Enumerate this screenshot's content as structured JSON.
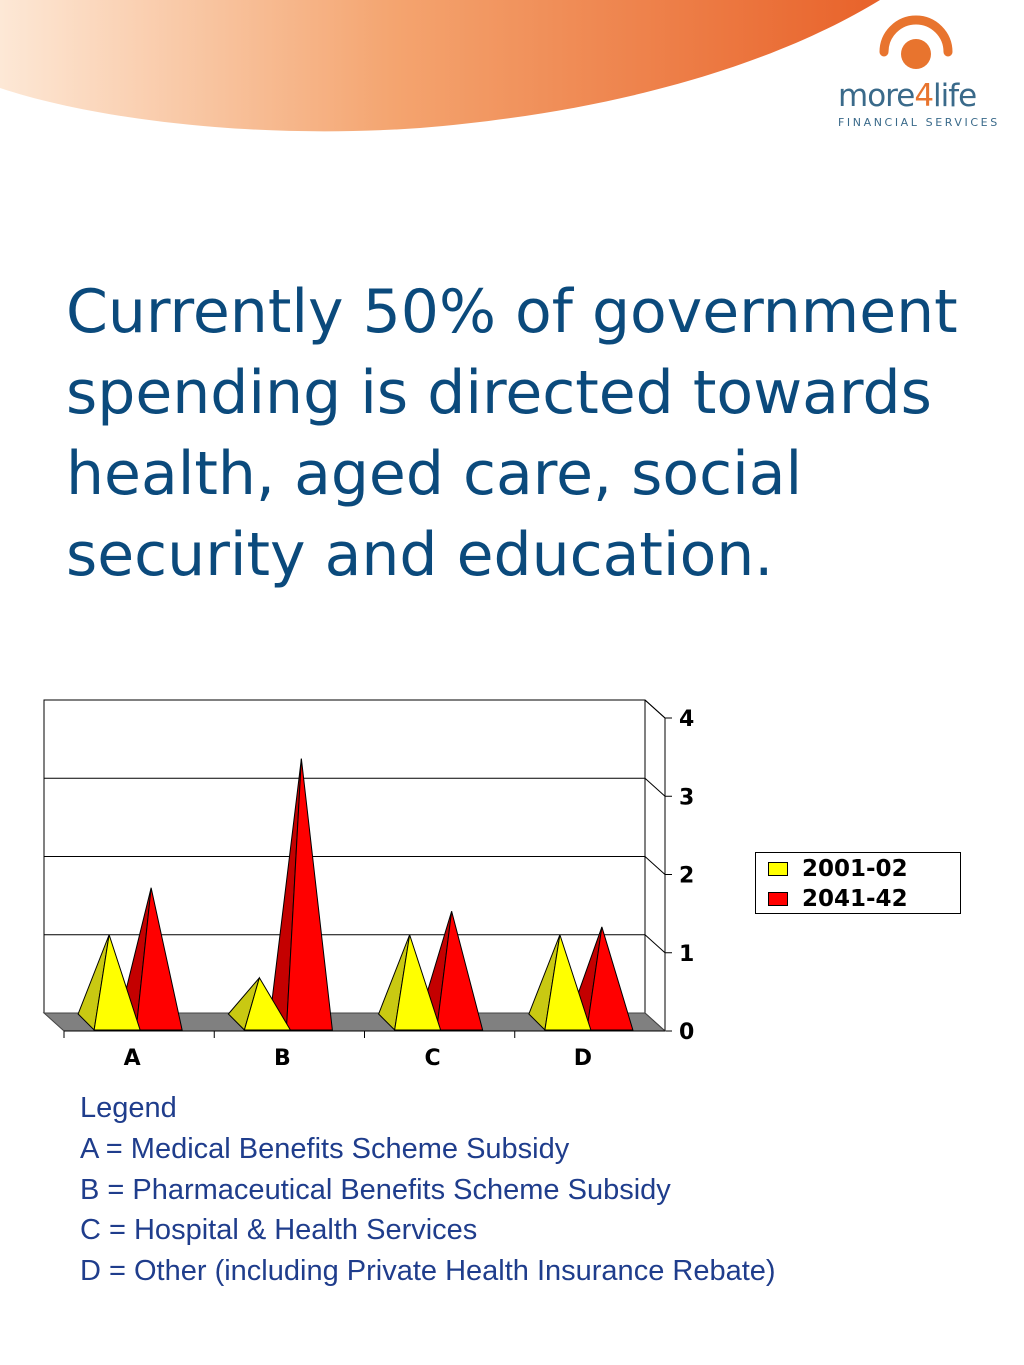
{
  "header": {
    "colors": {
      "gradient_start": "#fde3cc",
      "gradient_end": "#e8652a"
    }
  },
  "logo": {
    "brand_prefix": "more",
    "brand_digit": "4",
    "brand_suffix": "life",
    "tagline": "FINANCIAL SERVICES",
    "icon": "orange-ring-icon",
    "colors": {
      "ring": "#e8742e",
      "text": "#3a6a8a"
    }
  },
  "headline": "Currently 50% of government spending is directed towards health, aged care, social security and education.",
  "chart_data": {
    "type": "bar",
    "style": "3d-pyramid",
    "categories": [
      "A",
      "B",
      "C",
      "D"
    ],
    "series": [
      {
        "name": "2001-02",
        "values": [
          1.0,
          0.45,
          1.0,
          1.0
        ],
        "color": "#ffff00"
      },
      {
        "name": "2041-42",
        "values": [
          1.6,
          3.25,
          1.3,
          1.1
        ],
        "color": "#ff0000"
      }
    ],
    "y_ticks": [
      "0",
      "1",
      "2",
      "3",
      "4"
    ],
    "ylim": [
      0,
      4
    ],
    "y_axis_side": "right",
    "grid": true,
    "legend_position": "right",
    "floor_color": "#808080"
  },
  "key": {
    "title": "Legend",
    "items": [
      "A = Medical Benefits Scheme Subsidy",
      "B = Pharmaceutical Benefits Scheme Subsidy",
      "C = Hospital & Health Services",
      "D = Other (including Private Health Insurance Rebate)"
    ]
  }
}
